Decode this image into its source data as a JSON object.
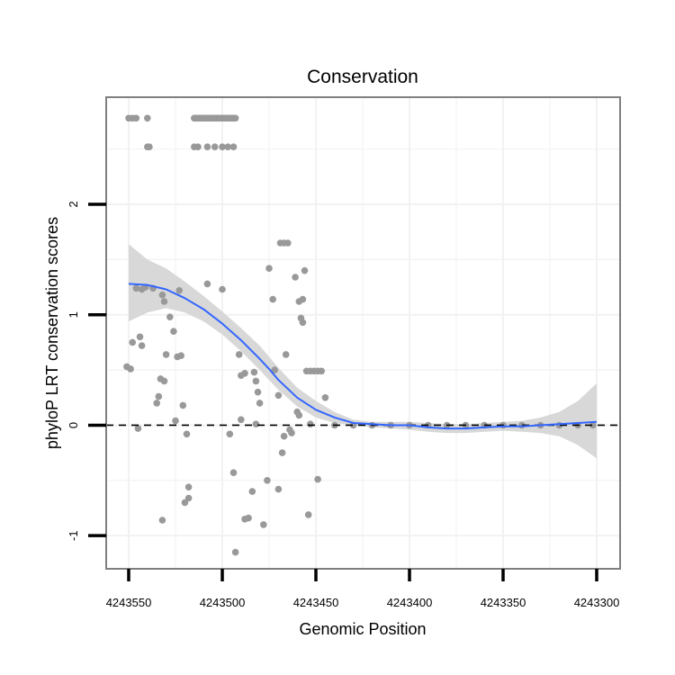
{
  "chart_data": {
    "type": "scatter",
    "title": "Conservation",
    "xlabel": "Genomic Position",
    "ylabel": "phyloP LRT conservation scores",
    "xlim": [
      4243550,
      4243300
    ],
    "x_reversed": true,
    "ylim": [
      -1.3,
      2.97
    ],
    "xticks": [
      4243550,
      4243500,
      4243450,
      4243400,
      4243350,
      4243300
    ],
    "xtick_labels": [
      "4243550",
      "4243500",
      "4243450",
      "4243400",
      "4243350",
      "4243300"
    ],
    "yticks": [
      -1,
      0,
      1,
      2
    ],
    "ytick_labels": [
      "-1",
      "0",
      "1",
      "2"
    ],
    "grid": true,
    "reference_line": {
      "y": 0,
      "style": "dashed"
    },
    "colors": {
      "points": "#999999",
      "smooth": "#3366ff",
      "ribbon": "#d6d6d6",
      "frame": "#7f7f7f",
      "grid": "#f2f2f2",
      "refline": "#000000"
    },
    "series": [
      {
        "name": "scores",
        "points": [
          [
            4243550,
            2.78
          ],
          [
            4243548,
            2.78
          ],
          [
            4243546,
            2.78
          ],
          [
            4243540,
            2.78
          ],
          [
            4243540,
            2.52
          ],
          [
            4243539,
            2.52
          ],
          [
            4243515,
            2.78
          ],
          [
            4243514,
            2.78
          ],
          [
            4243513,
            2.78
          ],
          [
            4243512,
            2.78
          ],
          [
            4243511,
            2.78
          ],
          [
            4243510,
            2.78
          ],
          [
            4243509,
            2.78
          ],
          [
            4243508,
            2.78
          ],
          [
            4243507,
            2.78
          ],
          [
            4243506,
            2.78
          ],
          [
            4243505,
            2.78
          ],
          [
            4243504,
            2.78
          ],
          [
            4243503,
            2.78
          ],
          [
            4243502,
            2.78
          ],
          [
            4243501,
            2.78
          ],
          [
            4243500,
            2.78
          ],
          [
            4243499,
            2.78
          ],
          [
            4243498,
            2.78
          ],
          [
            4243497,
            2.78
          ],
          [
            4243496,
            2.78
          ],
          [
            4243495,
            2.78
          ],
          [
            4243494,
            2.78
          ],
          [
            4243493,
            2.78
          ],
          [
            4243515,
            2.52
          ],
          [
            4243513,
            2.52
          ],
          [
            4243508,
            2.52
          ],
          [
            4243504,
            2.52
          ],
          [
            4243500,
            2.52
          ],
          [
            4243497,
            2.52
          ],
          [
            4243494,
            2.52
          ],
          [
            4243551,
            0.53
          ],
          [
            4243549,
            0.51
          ],
          [
            4243548,
            0.75
          ],
          [
            4243546,
            1.24
          ],
          [
            4243543,
            1.23
          ],
          [
            4243541,
            1.25
          ],
          [
            4243544,
            0.8
          ],
          [
            4243543,
            0.72
          ],
          [
            4243545,
            -0.03
          ],
          [
            4243537,
            1.24
          ],
          [
            4243532,
            1.18
          ],
          [
            4243531,
            1.12
          ],
          [
            4243533,
            0.42
          ],
          [
            4243531,
            0.4
          ],
          [
            4243535,
            0.2
          ],
          [
            4243534,
            0.26
          ],
          [
            4243532,
            -0.86
          ],
          [
            4243528,
            0.98
          ],
          [
            4243526,
            0.85
          ],
          [
            4243525,
            0.04
          ],
          [
            4243524,
            0.62
          ],
          [
            4243522,
            0.63
          ],
          [
            4243523,
            1.22
          ],
          [
            4243521,
            0.18
          ],
          [
            4243519,
            -0.08
          ],
          [
            4243518,
            -0.56
          ],
          [
            4243518,
            -0.66
          ],
          [
            4243520,
            -0.7
          ],
          [
            4243530,
            0.64
          ],
          [
            4243508,
            1.28
          ],
          [
            4243500,
            1.23
          ],
          [
            4243496,
            -0.08
          ],
          [
            4243494,
            -0.43
          ],
          [
            4243493,
            -1.15
          ],
          [
            4243491,
            0.64
          ],
          [
            4243490,
            0.45
          ],
          [
            4243488,
            0.47
          ],
          [
            4243490,
            0.05
          ],
          [
            4243486,
            -0.84
          ],
          [
            4243488,
            -0.85
          ],
          [
            4243484,
            -0.6
          ],
          [
            4243483,
            0.48
          ],
          [
            4243482,
            0.4
          ],
          [
            4243481,
            0.3
          ],
          [
            4243480,
            0.2
          ],
          [
            4243482,
            0.01
          ],
          [
            4243478,
            -0.9
          ],
          [
            4243476,
            -0.5
          ],
          [
            4243475,
            1.42
          ],
          [
            4243473,
            1.14
          ],
          [
            4243472,
            0.5
          ],
          [
            4243470,
            0.27
          ],
          [
            4243470,
            -0.58
          ],
          [
            4243468,
            -0.25
          ],
          [
            4243467,
            -0.1
          ],
          [
            4243469,
            1.65
          ],
          [
            4243467,
            1.65
          ],
          [
            4243465,
            1.65
          ],
          [
            4243466,
            0.64
          ],
          [
            4243464,
            -0.04
          ],
          [
            4243463,
            -0.07
          ],
          [
            4243461,
            1.34
          ],
          [
            4243459,
            1.12
          ],
          [
            4243458,
            0.97
          ],
          [
            4243457,
            0.93
          ],
          [
            4243460,
            0.12
          ],
          [
            4243459,
            0.09
          ],
          [
            4243456,
            1.4
          ],
          [
            4243457,
            1.14
          ],
          [
            4243454,
            -0.81
          ],
          [
            4243455,
            0.49
          ],
          [
            4243453,
            0.49
          ],
          [
            4243451,
            0.49
          ],
          [
            4243449,
            0.49
          ],
          [
            4243447,
            0.49
          ],
          [
            4243453,
            0.01
          ],
          [
            4243449,
            -0.49
          ],
          [
            4243445,
            0.25
          ],
          [
            4243440,
            0.0
          ],
          [
            4243430,
            0.0
          ],
          [
            4243420,
            0.0
          ],
          [
            4243410,
            0.0
          ],
          [
            4243400,
            0.0
          ],
          [
            4243390,
            0.0
          ],
          [
            4243380,
            0.0
          ],
          [
            4243370,
            0.0
          ],
          [
            4243360,
            0.0
          ],
          [
            4243350,
            0.0
          ],
          [
            4243340,
            0.0
          ],
          [
            4243330,
            0.0
          ],
          [
            4243320,
            0.0
          ],
          [
            4243310,
            0.0
          ],
          [
            4243302,
            0.0
          ]
        ]
      },
      {
        "name": "smooth",
        "kind": "loess",
        "x": [
          4243550,
          4243540,
          4243530,
          4243520,
          4243510,
          4243500,
          4243490,
          4243480,
          4243475,
          4243470,
          4243460,
          4243450,
          4243440,
          4243430,
          4243420,
          4243410,
          4243400,
          4243390,
          4243380,
          4243370,
          4243360,
          4243350,
          4243340,
          4243330,
          4243320,
          4243310,
          4243300
        ],
        "y": [
          1.28,
          1.27,
          1.23,
          1.15,
          1.05,
          0.92,
          0.77,
          0.6,
          0.51,
          0.41,
          0.25,
          0.14,
          0.07,
          0.02,
          0.01,
          0.0,
          0.0,
          -0.02,
          -0.03,
          -0.03,
          -0.02,
          -0.01,
          -0.01,
          0.0,
          0.01,
          0.02,
          0.03
        ],
        "lower": [
          0.94,
          1.02,
          1.06,
          1.02,
          0.94,
          0.82,
          0.67,
          0.5,
          0.41,
          0.32,
          0.17,
          0.07,
          0.02,
          0.0,
          -0.02,
          -0.03,
          -0.04,
          -0.06,
          -0.07,
          -0.07,
          -0.06,
          -0.05,
          -0.06,
          -0.07,
          -0.1,
          -0.18,
          -0.3
        ],
        "upper": [
          1.64,
          1.5,
          1.42,
          1.3,
          1.17,
          1.03,
          0.88,
          0.72,
          0.62,
          0.52,
          0.34,
          0.22,
          0.12,
          0.05,
          0.03,
          0.03,
          0.03,
          0.02,
          0.01,
          0.01,
          0.02,
          0.03,
          0.04,
          0.07,
          0.12,
          0.22,
          0.38
        ]
      }
    ]
  }
}
